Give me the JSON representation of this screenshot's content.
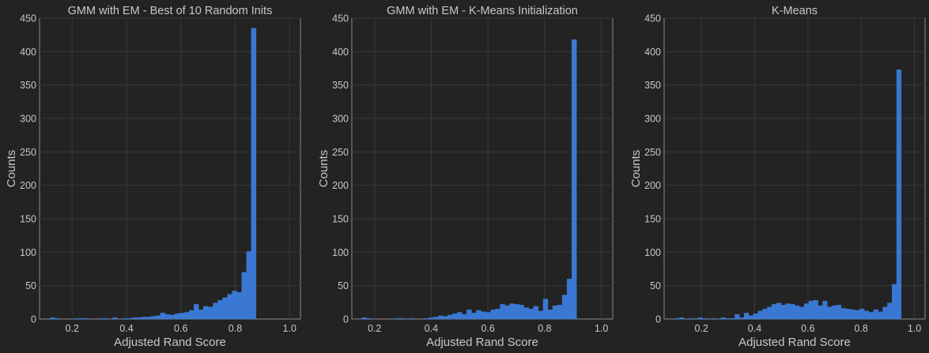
{
  "colors": {
    "background": "#232323",
    "axes_face": "#232323",
    "spine": "#8a8a8a",
    "grid": "#3a3a3a",
    "text": "#c8c8c8",
    "bar": "#3a78d4",
    "bar_edge": "#1f4f96"
  },
  "chart_data": [
    {
      "type": "bar",
      "title": "GMM with EM - Best of 10 Random Inits",
      "xlabel": "Adjusted Rand Score",
      "ylabel": "Counts",
      "xlim": [
        0.08,
        1.04
      ],
      "ylim": [
        0,
        450
      ],
      "xticks": [
        "0.2",
        "0.4",
        "0.6",
        "0.8",
        "1.0"
      ],
      "yticks": [
        "0",
        "50",
        "100",
        "150",
        "200",
        "250",
        "300",
        "350",
        "400",
        "450"
      ],
      "grid": true,
      "bin_start": 0.12,
      "bin_width": 0.0176,
      "counts": [
        2,
        1,
        0,
        0,
        0,
        1,
        1,
        1,
        0,
        0,
        1,
        1,
        0,
        2,
        0,
        1,
        1,
        2,
        2,
        3,
        3,
        4,
        5,
        9,
        7,
        6,
        8,
        9,
        10,
        13,
        22,
        14,
        19,
        18,
        24,
        28,
        32,
        37,
        42,
        40,
        70,
        101,
        435
      ]
    },
    {
      "type": "bar",
      "title": "GMM with EM - K-Means Initialization",
      "xlabel": "Adjusted Rand Score",
      "ylabel": "Counts",
      "xlim": [
        0.12,
        1.04
      ],
      "ylim": [
        0,
        450
      ],
      "xticks": [
        "0.2",
        "0.4",
        "0.6",
        "0.8",
        "1.0"
      ],
      "yticks": [
        "0",
        "50",
        "100",
        "150",
        "200",
        "250",
        "300",
        "350",
        "400",
        "450"
      ],
      "grid": true,
      "bin_start": 0.155,
      "bin_width": 0.01683,
      "counts": [
        2,
        1,
        0,
        0,
        0,
        0,
        0,
        1,
        1,
        0,
        1,
        0,
        0,
        1,
        2,
        3,
        5,
        4,
        6,
        8,
        10,
        7,
        14,
        9,
        13,
        11,
        10,
        14,
        15,
        22,
        20,
        23,
        22,
        21,
        17,
        15,
        19,
        12,
        30,
        14,
        20,
        21,
        36,
        60,
        418
      ]
    },
    {
      "type": "bar",
      "title": "K-Means",
      "xlabel": "Adjusted Rand Score",
      "ylabel": "Counts",
      "xlim": [
        0.06,
        1.04
      ],
      "ylim": [
        0,
        450
      ],
      "xticks": [
        "0.2",
        "0.4",
        "0.6",
        "0.8",
        "1.0"
      ],
      "yticks": [
        "0",
        "50",
        "100",
        "150",
        "200",
        "250",
        "300",
        "350",
        "400",
        "450"
      ],
      "grid": true,
      "bin_start": 0.1,
      "bin_width": 0.01736,
      "counts": [
        1,
        2,
        0,
        1,
        0,
        2,
        1,
        0,
        1,
        0,
        2,
        1,
        1,
        7,
        2,
        9,
        5,
        8,
        12,
        15,
        18,
        22,
        24,
        21,
        23,
        22,
        20,
        18,
        23,
        27,
        28,
        20,
        27,
        18,
        20,
        21,
        16,
        15,
        14,
        13,
        15,
        12,
        10,
        14,
        11,
        18,
        24,
        52,
        373
      ]
    }
  ]
}
